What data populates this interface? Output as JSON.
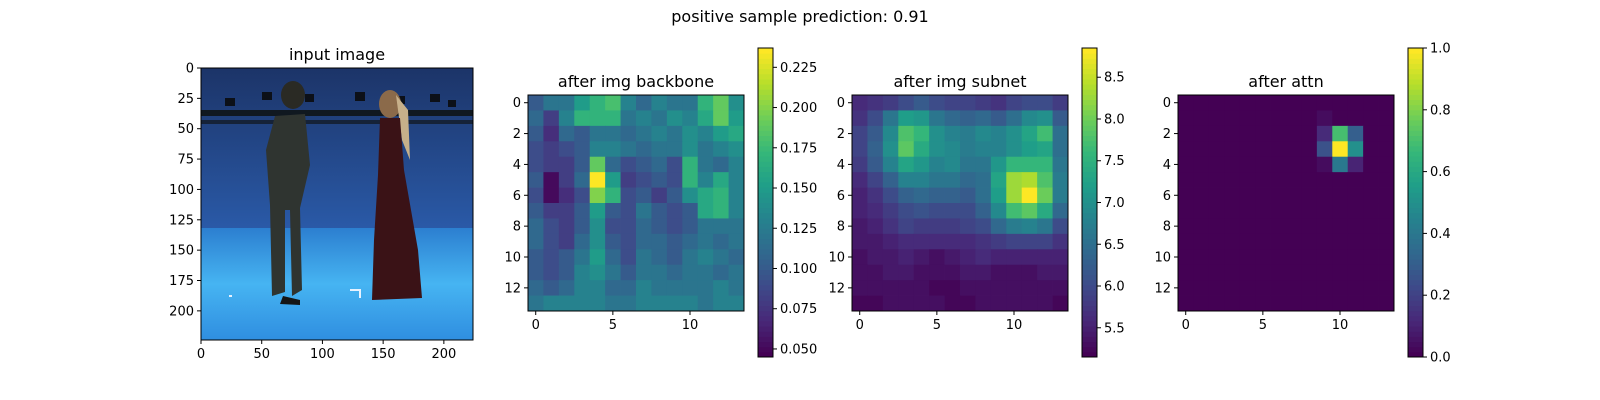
{
  "suptitle": "positive sample      prediction: 0.91",
  "chart_data": [
    {
      "type": "image",
      "title": "input image",
      "description_colors": {
        "backdrop": "#1f3f7a",
        "floor": "#3aa0e8"
      },
      "xlim": [
        0,
        224
      ],
      "ylim": [
        224,
        0
      ],
      "xticks": [
        0,
        50,
        100,
        150,
        200
      ],
      "yticks": [
        0,
        25,
        50,
        75,
        100,
        125,
        150,
        175,
        200
      ],
      "xtick_labels": [
        "0",
        "50",
        "100",
        "150",
        "200"
      ],
      "ytick_labels": [
        "0",
        "25",
        "50",
        "75",
        "100",
        "125",
        "150",
        "175",
        "200"
      ]
    },
    {
      "type": "heatmap",
      "title": "after img backbone",
      "colormap": "viridis",
      "vmin": 0.045,
      "vmax": 0.237,
      "xticks": [
        0,
        5,
        10
      ],
      "yticks": [
        0,
        2,
        4,
        6,
        8,
        10,
        12
      ],
      "xtick_labels": [
        "0",
        "5",
        "10"
      ],
      "ytick_labels": [
        "0",
        "2",
        "4",
        "6",
        "8",
        "10",
        "12"
      ],
      "colorbar_ticks": [
        0.05,
        0.075,
        0.1,
        0.125,
        0.15,
        0.175,
        0.2,
        0.225
      ],
      "colorbar_labels": [
        "0.050",
        "0.075",
        "0.100",
        "0.125",
        "0.150",
        "0.175",
        "0.200",
        "0.225"
      ],
      "values": [
        [
          0.1,
          0.12,
          0.12,
          0.15,
          0.17,
          0.18,
          0.13,
          0.11,
          0.13,
          0.12,
          0.12,
          0.17,
          0.19,
          0.14
        ],
        [
          0.11,
          0.08,
          0.13,
          0.17,
          0.17,
          0.17,
          0.12,
          0.13,
          0.12,
          0.14,
          0.13,
          0.16,
          0.19,
          0.15
        ],
        [
          0.1,
          0.07,
          0.11,
          0.1,
          0.12,
          0.12,
          0.11,
          0.12,
          0.13,
          0.12,
          0.14,
          0.13,
          0.15,
          0.16
        ],
        [
          0.09,
          0.08,
          0.09,
          0.1,
          0.13,
          0.13,
          0.12,
          0.11,
          0.12,
          0.12,
          0.14,
          0.12,
          0.13,
          0.14
        ],
        [
          0.09,
          0.08,
          0.08,
          0.1,
          0.19,
          0.11,
          0.09,
          0.1,
          0.11,
          0.09,
          0.17,
          0.12,
          0.11,
          0.13
        ],
        [
          0.1,
          0.05,
          0.08,
          0.11,
          0.237,
          0.15,
          0.08,
          0.09,
          0.1,
          0.09,
          0.17,
          0.13,
          0.16,
          0.13
        ],
        [
          0.09,
          0.05,
          0.07,
          0.09,
          0.2,
          0.17,
          0.09,
          0.1,
          0.08,
          0.1,
          0.14,
          0.16,
          0.17,
          0.13
        ],
        [
          0.1,
          0.08,
          0.08,
          0.1,
          0.15,
          0.1,
          0.09,
          0.12,
          0.1,
          0.09,
          0.1,
          0.16,
          0.17,
          0.13
        ],
        [
          0.11,
          0.09,
          0.08,
          0.1,
          0.14,
          0.09,
          0.09,
          0.11,
          0.1,
          0.09,
          0.1,
          0.12,
          0.12,
          0.12
        ],
        [
          0.11,
          0.09,
          0.08,
          0.11,
          0.14,
          0.1,
          0.09,
          0.11,
          0.11,
          0.1,
          0.11,
          0.12,
          0.11,
          0.12
        ],
        [
          0.1,
          0.09,
          0.1,
          0.12,
          0.15,
          0.11,
          0.09,
          0.12,
          0.11,
          0.1,
          0.12,
          0.13,
          0.12,
          0.11
        ],
        [
          0.1,
          0.09,
          0.1,
          0.13,
          0.14,
          0.12,
          0.1,
          0.12,
          0.12,
          0.11,
          0.12,
          0.12,
          0.11,
          0.12
        ],
        [
          0.11,
          0.1,
          0.11,
          0.13,
          0.13,
          0.11,
          0.11,
          0.13,
          0.12,
          0.12,
          0.12,
          0.12,
          0.13,
          0.12
        ],
        [
          0.12,
          0.13,
          0.13,
          0.13,
          0.13,
          0.12,
          0.12,
          0.13,
          0.13,
          0.13,
          0.13,
          0.12,
          0.13,
          0.13
        ]
      ]
    },
    {
      "type": "heatmap",
      "title": "after img subnet",
      "colormap": "viridis",
      "vmin": 5.15,
      "vmax": 8.85,
      "xticks": [
        0,
        5,
        10
      ],
      "yticks": [
        0,
        2,
        4,
        6,
        8,
        10,
        12
      ],
      "xtick_labels": [
        "0",
        "5",
        "10"
      ],
      "ytick_labels": [
        "0",
        "2",
        "4",
        "6",
        "8",
        "10",
        "12"
      ],
      "colorbar_ticks": [
        5.5,
        6.0,
        6.5,
        7.0,
        7.5,
        8.0,
        8.5
      ],
      "colorbar_labels": [
        "5.5",
        "6.0",
        "6.5",
        "7.0",
        "7.5",
        "8.0",
        "8.5"
      ],
      "values": [
        [
          5.6,
          5.7,
          5.8,
          6.0,
          6.2,
          6.0,
          5.9,
          5.9,
          5.8,
          5.7,
          5.9,
          6.0,
          6.0,
          5.8
        ],
        [
          5.7,
          6.0,
          6.6,
          7.2,
          7.1,
          6.6,
          6.4,
          6.3,
          6.4,
          6.2,
          6.5,
          6.9,
          7.0,
          6.2
        ],
        [
          5.9,
          6.2,
          6.9,
          7.8,
          7.6,
          7.0,
          6.8,
          6.7,
          6.9,
          6.8,
          7.0,
          7.3,
          7.7,
          6.5
        ],
        [
          5.9,
          6.3,
          7.0,
          7.9,
          7.4,
          7.0,
          6.9,
          6.7,
          6.8,
          6.8,
          7.0,
          7.2,
          7.3,
          6.5
        ],
        [
          5.8,
          6.2,
          6.8,
          7.3,
          7.1,
          6.8,
          6.9,
          6.6,
          6.6,
          7.1,
          7.6,
          7.6,
          7.6,
          6.6
        ],
        [
          5.6,
          5.9,
          6.3,
          6.8,
          6.8,
          6.6,
          6.6,
          6.4,
          6.5,
          7.3,
          8.3,
          8.4,
          7.8,
          6.7
        ],
        [
          5.5,
          5.7,
          6.0,
          6.3,
          6.4,
          6.3,
          6.3,
          6.2,
          6.5,
          7.2,
          8.3,
          8.85,
          8.0,
          6.7
        ],
        [
          5.5,
          5.6,
          5.8,
          6.0,
          6.1,
          6.0,
          6.0,
          6.0,
          6.3,
          6.9,
          7.7,
          7.9,
          7.4,
          6.4
        ],
        [
          5.4,
          5.5,
          5.7,
          5.9,
          5.8,
          5.8,
          5.8,
          5.9,
          6.0,
          6.4,
          6.7,
          6.8,
          6.6,
          6.0
        ],
        [
          5.4,
          5.4,
          5.5,
          5.6,
          5.6,
          5.6,
          5.6,
          5.6,
          5.7,
          5.8,
          5.9,
          5.9,
          5.9,
          5.7
        ],
        [
          5.3,
          5.4,
          5.4,
          5.5,
          5.4,
          5.3,
          5.4,
          5.5,
          5.6,
          5.5,
          5.5,
          5.5,
          5.5,
          5.5
        ],
        [
          5.3,
          5.3,
          5.4,
          5.4,
          5.3,
          5.3,
          5.3,
          5.4,
          5.4,
          5.3,
          5.3,
          5.3,
          5.4,
          5.4
        ],
        [
          5.3,
          5.3,
          5.3,
          5.3,
          5.3,
          5.2,
          5.2,
          5.3,
          5.3,
          5.3,
          5.3,
          5.3,
          5.3,
          5.3
        ],
        [
          5.2,
          5.2,
          5.3,
          5.3,
          5.3,
          5.3,
          5.2,
          5.2,
          5.3,
          5.3,
          5.3,
          5.3,
          5.3,
          5.2
        ]
      ]
    },
    {
      "type": "heatmap",
      "title": "after attn",
      "colormap": "viridis",
      "vmin": 0.0,
      "vmax": 1.0,
      "xticks": [
        0,
        5,
        10
      ],
      "yticks": [
        0,
        2,
        4,
        6,
        8,
        10,
        12
      ],
      "xtick_labels": [
        "0",
        "5",
        "10"
      ],
      "ytick_labels": [
        "0",
        "2",
        "4",
        "6",
        "8",
        "10",
        "12"
      ],
      "colorbar_ticks": [
        0.0,
        0.2,
        0.4,
        0.6,
        0.8,
        1.0
      ],
      "colorbar_labels": [
        "0.0",
        "0.2",
        "0.4",
        "0.6",
        "0.8",
        "1.0"
      ],
      "values": [
        [
          0,
          0,
          0,
          0,
          0,
          0,
          0,
          0,
          0,
          0,
          0,
          0,
          0,
          0
        ],
        [
          0,
          0,
          0,
          0,
          0,
          0,
          0,
          0,
          0,
          0.03,
          0,
          0,
          0,
          0
        ],
        [
          0,
          0,
          0,
          0,
          0,
          0,
          0,
          0,
          0,
          0.12,
          0.7,
          0.3,
          0,
          0
        ],
        [
          0,
          0,
          0,
          0,
          0,
          0,
          0,
          0,
          0,
          0.25,
          1.0,
          0.5,
          0,
          0
        ],
        [
          0,
          0,
          0,
          0,
          0,
          0,
          0,
          0,
          0,
          0.03,
          0.4,
          0.1,
          0,
          0
        ],
        [
          0,
          0,
          0,
          0,
          0,
          0,
          0,
          0,
          0,
          0,
          0,
          0,
          0,
          0
        ],
        [
          0,
          0,
          0,
          0,
          0,
          0,
          0,
          0,
          0,
          0,
          0,
          0,
          0,
          0
        ],
        [
          0,
          0,
          0,
          0,
          0,
          0,
          0,
          0,
          0,
          0,
          0,
          0,
          0,
          0
        ],
        [
          0,
          0,
          0,
          0,
          0,
          0,
          0,
          0,
          0,
          0,
          0,
          0,
          0,
          0
        ],
        [
          0,
          0,
          0,
          0,
          0,
          0,
          0,
          0,
          0,
          0,
          0,
          0,
          0,
          0
        ],
        [
          0,
          0,
          0,
          0,
          0,
          0,
          0,
          0,
          0,
          0,
          0,
          0,
          0,
          0
        ],
        [
          0,
          0,
          0,
          0,
          0,
          0,
          0,
          0,
          0,
          0,
          0,
          0,
          0,
          0
        ],
        [
          0,
          0,
          0,
          0,
          0,
          0,
          0,
          0,
          0,
          0,
          0,
          0,
          0,
          0
        ],
        [
          0,
          0,
          0,
          0,
          0,
          0,
          0,
          0,
          0,
          0,
          0,
          0,
          0,
          0
        ]
      ]
    }
  ]
}
